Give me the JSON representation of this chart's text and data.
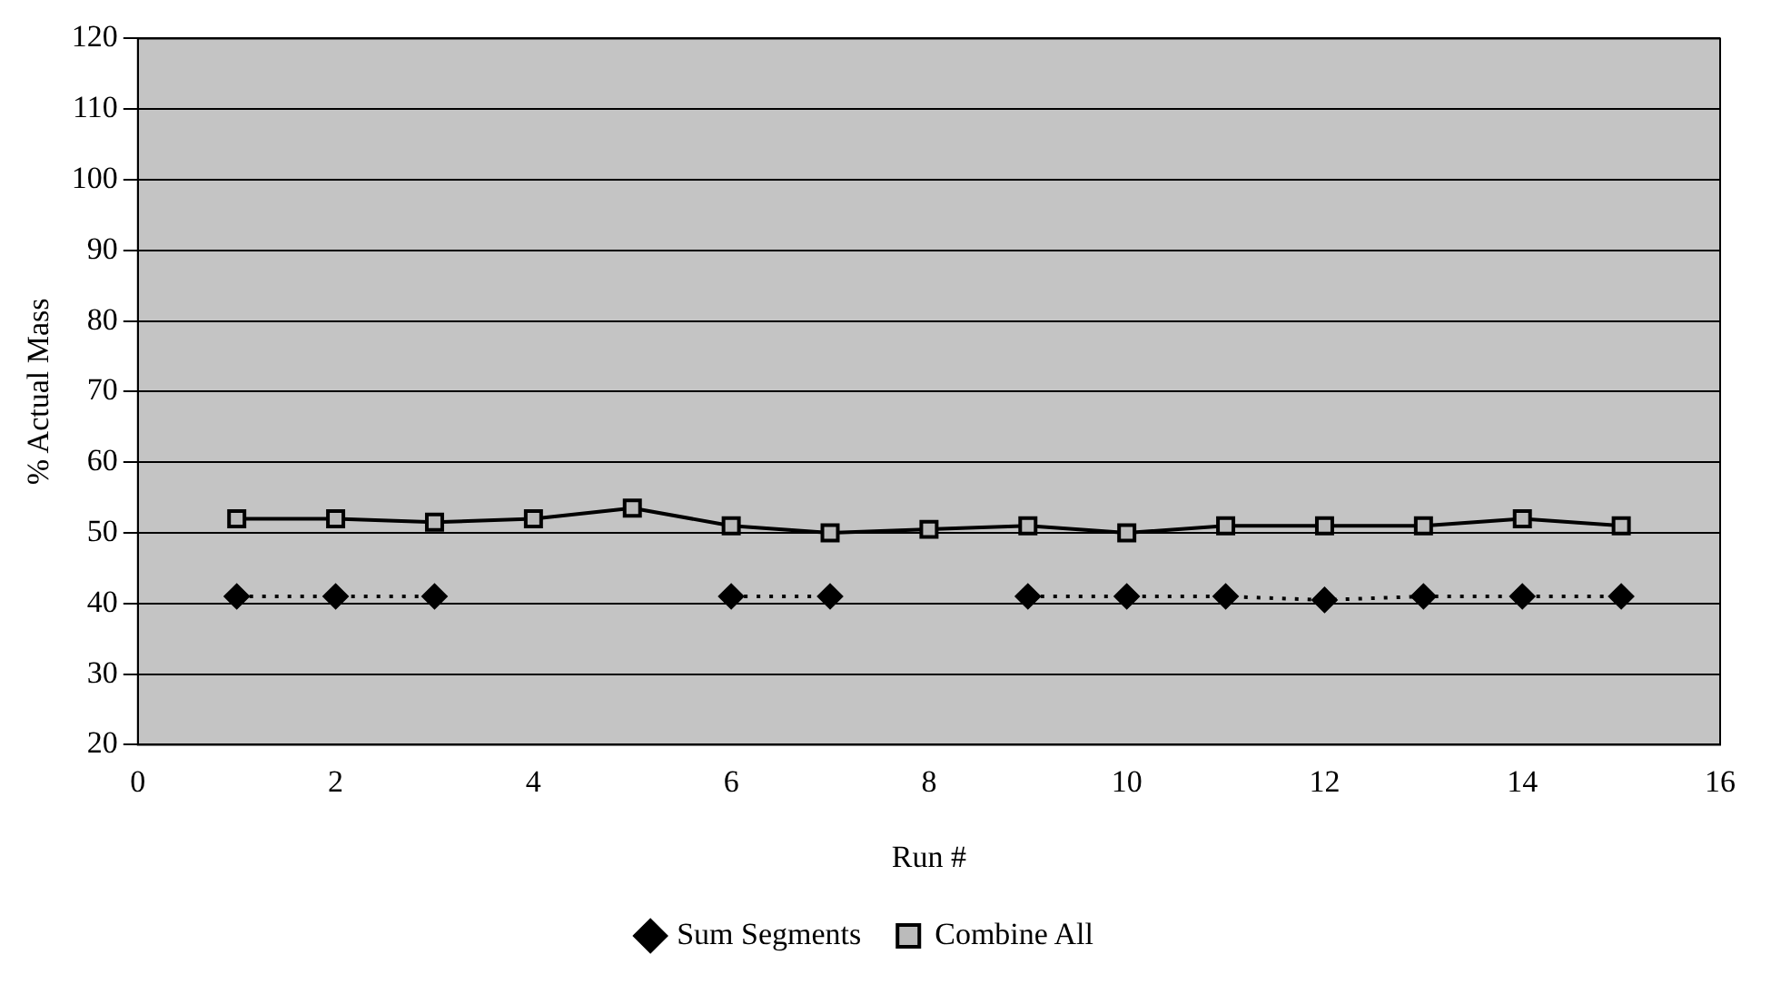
{
  "chart_data": {
    "type": "line",
    "xlabel": "Run #",
    "ylabel": "% Actual Mass",
    "x": [
      1,
      2,
      3,
      4,
      5,
      6,
      7,
      8,
      9,
      10,
      11,
      12,
      13,
      14,
      15
    ],
    "series": [
      {
        "name": "Sum Segments",
        "color": "#000000",
        "marker": "diamond",
        "line_style": "dotted",
        "values": [
          41,
          41,
          41,
          null,
          null,
          41,
          41,
          null,
          41,
          41,
          41,
          40.5,
          41,
          41,
          41
        ]
      },
      {
        "name": "Combine All",
        "color": "#000000",
        "marker": "square",
        "line_style": "solid",
        "values": [
          52,
          52,
          51.5,
          52,
          53.5,
          51,
          50,
          50.5,
          51,
          50,
          51,
          51,
          51,
          52,
          51
        ]
      }
    ],
    "xlim": [
      0,
      16
    ],
    "xticks": [
      0,
      2,
      4,
      6,
      8,
      10,
      12,
      14,
      16
    ],
    "ylim": [
      20,
      120
    ],
    "yticks": [
      20,
      30,
      40,
      50,
      60,
      70,
      80,
      90,
      100,
      110,
      120
    ],
    "grid": "y",
    "legend": "bottom"
  }
}
